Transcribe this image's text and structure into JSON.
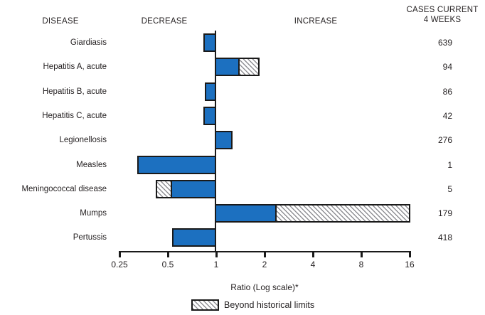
{
  "header": {
    "disease": "DISEASE",
    "decrease": "DECREASE",
    "increase": "INCREASE",
    "cases_line1": "CASES CURRENT",
    "cases_line2": "4 WEEKS"
  },
  "chart_data": {
    "type": "bar",
    "orientation": "horizontal",
    "scale": "log2",
    "baseline": 1,
    "axis": {
      "label": "Ratio (Log scale)*",
      "ticks": [
        0.25,
        0.5,
        1,
        2,
        4,
        8,
        16
      ],
      "tick_labels": [
        "0.25",
        "0.5",
        "1",
        "2",
        "4",
        "8",
        "16"
      ],
      "range": [
        0.25,
        16
      ]
    },
    "legend": {
      "label": "Beyond historical limits",
      "style": "hatched"
    },
    "rows": [
      {
        "label": "Giardiasis",
        "cases": "639",
        "ratio": 0.85,
        "solid_to": 0.85
      },
      {
        "label": "Hepatitis A, acute",
        "cases": "94",
        "ratio": 1.82,
        "solid_to": 1.37
      },
      {
        "label": "Hepatitis B, acute",
        "cases": "86",
        "ratio": 0.87,
        "solid_to": 0.87
      },
      {
        "label": "Hepatitis C, acute",
        "cases": "42",
        "ratio": 0.85,
        "solid_to": 0.85
      },
      {
        "label": "Legionellosis",
        "cases": "276",
        "ratio": 1.24,
        "solid_to": 1.24
      },
      {
        "label": "Measles",
        "cases": "1",
        "ratio": 0.33,
        "solid_to": 0.33
      },
      {
        "label": "Meningococcal disease",
        "cases": "5",
        "ratio": 0.43,
        "solid_to": 0.53
      },
      {
        "label": "Mumps",
        "cases": "179",
        "ratio": 15.9,
        "solid_to": 2.33
      },
      {
        "label": "Pertussis",
        "cases": "418",
        "ratio": 0.54,
        "solid_to": 0.54
      }
    ]
  },
  "colors": {
    "bar_fill": "#1c70c0",
    "bar_border": "#1a1a1a",
    "hatch_line": "#8f8f94",
    "text": "#231f20",
    "background": "#ffffff"
  }
}
